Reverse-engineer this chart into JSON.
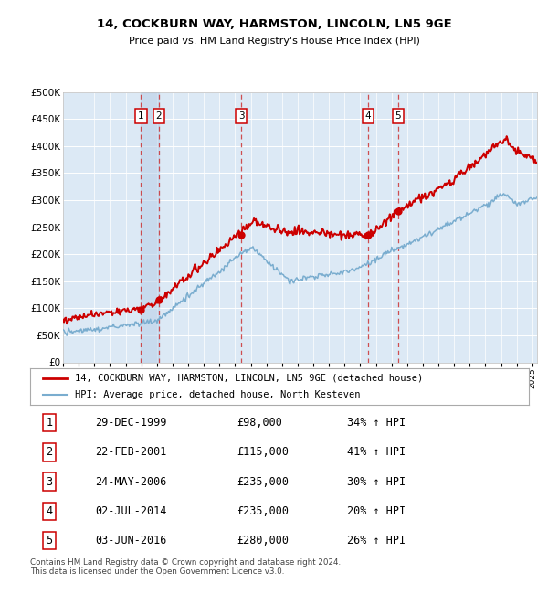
{
  "title": "14, COCKBURN WAY, HARMSTON, LINCOLN, LN5 9GE",
  "subtitle": "Price paid vs. HM Land Registry's House Price Index (HPI)",
  "plot_bg_color": "#dce9f5",
  "red_line_color": "#cc0000",
  "blue_line_color": "#7aadcf",
  "ylim": [
    0,
    500000
  ],
  "yticks": [
    0,
    50000,
    100000,
    150000,
    200000,
    250000,
    300000,
    350000,
    400000,
    450000,
    500000
  ],
  "ytick_labels": [
    "£0",
    "£50K",
    "£100K",
    "£150K",
    "£200K",
    "£250K",
    "£300K",
    "£350K",
    "£400K",
    "£450K",
    "£500K"
  ],
  "xlim_start": 1995,
  "xlim_end": 2025.3,
  "sales": [
    {
      "num": 1,
      "date_dec": 1999.99,
      "date_str": "29-DEC-1999",
      "price": 98000,
      "pct": "34%",
      "dir": "↑"
    },
    {
      "num": 2,
      "date_dec": 2001.13,
      "date_str": "22-FEB-2001",
      "price": 115000,
      "pct": "41%",
      "dir": "↑"
    },
    {
      "num": 3,
      "date_dec": 2006.39,
      "date_str": "24-MAY-2006",
      "price": 235000,
      "pct": "30%",
      "dir": "↑"
    },
    {
      "num": 4,
      "date_dec": 2014.5,
      "date_str": "02-JUL-2014",
      "price": 235000,
      "pct": "20%",
      "dir": "↑"
    },
    {
      "num": 5,
      "date_dec": 2016.42,
      "date_str": "03-JUN-2016",
      "price": 280000,
      "pct": "26%",
      "dir": "↑"
    }
  ],
  "legend_red": "14, COCKBURN WAY, HARMSTON, LINCOLN, LN5 9GE (detached house)",
  "legend_blue": "HPI: Average price, detached house, North Kesteven",
  "footer": "Contains HM Land Registry data © Crown copyright and database right 2024.\nThis data is licensed under the Open Government Licence v3.0."
}
